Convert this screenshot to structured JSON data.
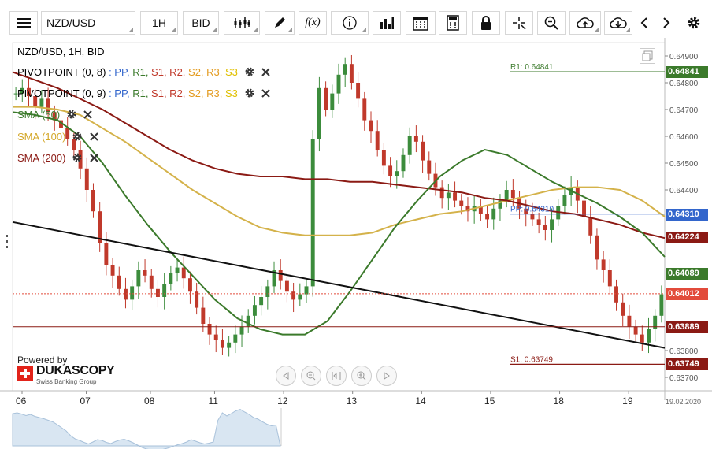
{
  "toolbar": {
    "symbol": "NZD/USD",
    "timeframe": "1H",
    "price_type": "BID",
    "function_label": "f(x)"
  },
  "legend": {
    "instrument": "NZD/USD, 1H, BID",
    "pivot1_name": "PIVOTPOINT (0, 8)",
    "pivot2_name": "PIVOTPOINT (0, 9)",
    "pivot_levels": [
      ": PP,",
      "R1,",
      "S1,",
      "R2,",
      "S2,",
      "R3,",
      "S3"
    ],
    "sma50": "SMA (50)",
    "sma100": "SMA (100)",
    "sma200": "SMA (200)"
  },
  "branding": {
    "powered_by": "Powered by",
    "name": "DUKASCOPY",
    "tagline": "Swiss Banking Group"
  },
  "date_label": "19.02.2020",
  "colors": {
    "up": "#3c8c3c",
    "down": "#c0392b",
    "sma50": "#3b7a2b",
    "sma100": "#d4b24a",
    "sma200": "#8b1a14",
    "trendline": "#111111",
    "r1": "#3b7a2b",
    "pp": "#3366cc",
    "s1": "#8b1a14"
  },
  "chart_data": {
    "type": "candlestick",
    "instrument": "NZD/USD",
    "timeframe": "1H",
    "y_ticks": [
      "0.64900",
      "0.64800",
      "0.64700",
      "0.64600",
      "0.64500",
      "0.64400",
      "0.63800",
      "0.63700"
    ],
    "y_tick_values": [
      0.649,
      0.648,
      0.647,
      0.646,
      0.645,
      0.644,
      0.638,
      0.637
    ],
    "ylim": [
      0.6365,
      0.6495
    ],
    "x_ticks": [
      "06",
      "07",
      "08",
      "11",
      "12",
      "13",
      "14",
      "15",
      "18",
      "19"
    ],
    "levels": [
      {
        "name": "R1",
        "label": "R1: 0.64841",
        "value": 0.64841,
        "tag": "0.64841",
        "color": "#3b7a2b"
      },
      {
        "name": "PP",
        "label": "PP: 0.64310",
        "value": 0.6431,
        "tag": "0.64310",
        "color": "#3366cc"
      },
      {
        "name": "S1",
        "label": "S1: 0.63749",
        "value": 0.63749,
        "tag": "0.63749",
        "color": "#8b1a14"
      }
    ],
    "axis_tags": [
      {
        "text": "0.64224",
        "value": 0.64224,
        "color": "#8b1a14"
      },
      {
        "text": "0.64089",
        "value": 0.64089,
        "color": "#3b7a2b"
      },
      {
        "text": "0.64012",
        "value": 0.64012,
        "color": "#e24b3b"
      },
      {
        "text": "0.63889",
        "value": 0.63889,
        "color": "#8b1a14"
      }
    ],
    "current_price": 0.64012,
    "horizontal_support": 0.63889,
    "trendline": {
      "from_day": "06",
      "from_price": 0.6428,
      "to_day": "19",
      "to_price": 0.6381
    },
    "close_series": [
      0.6476,
      0.6478,
      0.6475,
      0.6471,
      0.6474,
      0.6469,
      0.6466,
      0.6463,
      0.6459,
      0.6455,
      0.6448,
      0.644,
      0.6432,
      0.642,
      0.6412,
      0.6408,
      0.6403,
      0.6399,
      0.6404,
      0.641,
      0.6408,
      0.6403,
      0.64,
      0.6405,
      0.6409,
      0.6411,
      0.6407,
      0.6402,
      0.6396,
      0.639,
      0.6386,
      0.6384,
      0.6381,
      0.6383,
      0.6386,
      0.6389,
      0.6393,
      0.6397,
      0.64,
      0.6404,
      0.641,
      0.6406,
      0.6402,
      0.6399,
      0.6401,
      0.6404,
      0.6459,
      0.6478,
      0.647,
      0.6476,
      0.6483,
      0.6487,
      0.648,
      0.6474,
      0.6466,
      0.6462,
      0.6455,
      0.6449,
      0.6445,
      0.6447,
      0.6453,
      0.646,
      0.6458,
      0.6451,
      0.6446,
      0.6441,
      0.6437,
      0.6439,
      0.6436,
      0.6434,
      0.6432,
      0.6434,
      0.6431,
      0.6429,
      0.6433,
      0.6436,
      0.644,
      0.6437,
      0.6433,
      0.6431,
      0.6429,
      0.6427,
      0.6425,
      0.6429,
      0.6434,
      0.6438,
      0.6441,
      0.6436,
      0.643,
      0.6423,
      0.6414,
      0.641,
      0.6404,
      0.6398,
      0.6393,
      0.6389,
      0.6386,
      0.6383,
      0.6388,
      0.6393,
      0.6401
    ],
    "sma50_series": [
      0.6469,
      0.6468,
      0.6466,
      0.646,
      0.645,
      0.6438,
      0.6427,
      0.6417,
      0.6408,
      0.6399,
      0.6392,
      0.6388,
      0.6386,
      0.6386,
      0.6391,
      0.6402,
      0.6414,
      0.6426,
      0.6436,
      0.6445,
      0.6451,
      0.6455,
      0.6453,
      0.6448,
      0.6443,
      0.6439,
      0.6435,
      0.643,
      0.6424,
      0.6415
    ],
    "sma100_series": [
      0.6471,
      0.6471,
      0.647,
      0.6468,
      0.6463,
      0.6458,
      0.6452,
      0.6446,
      0.644,
      0.6435,
      0.643,
      0.6426,
      0.6424,
      0.6423,
      0.6423,
      0.6423,
      0.6424,
      0.6427,
      0.6429,
      0.6431,
      0.6432,
      0.6434,
      0.6436,
      0.6438,
      0.644,
      0.6441,
      0.6441,
      0.644,
      0.6436,
      0.643
    ],
    "sma200_series": [
      0.6484,
      0.6481,
      0.6478,
      0.6474,
      0.647,
      0.6465,
      0.646,
      0.6455,
      0.6451,
      0.6448,
      0.6446,
      0.6445,
      0.6445,
      0.6444,
      0.6444,
      0.6443,
      0.6443,
      0.6442,
      0.6441,
      0.644,
      0.6439,
      0.6437,
      0.6436,
      0.6434,
      0.6432,
      0.6431,
      0.6429,
      0.6427,
      0.6424,
      0.6422
    ]
  }
}
